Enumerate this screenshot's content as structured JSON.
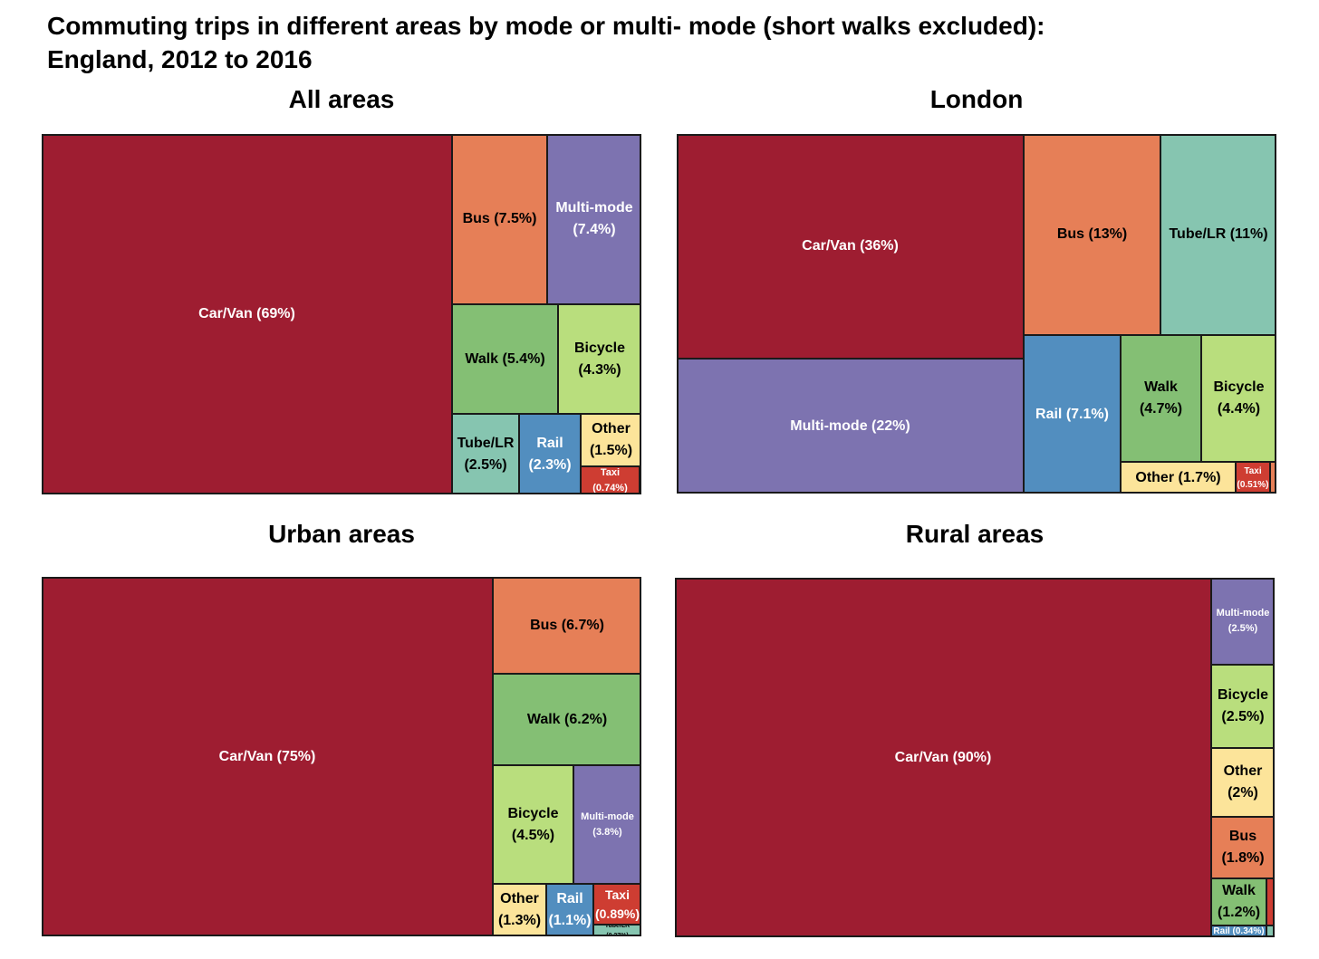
{
  "title_line1": "Commuting trips in different areas by mode or multi- mode (short walks excluded):",
  "title_line2": "England, 2012 to 2016",
  "colors": {
    "car": "#9E1D31",
    "bus": "#E67F57",
    "multi": "#7D73B0",
    "walk": "#84BF74",
    "bicycle": "#B9DE7D",
    "tube": "#86C5B0",
    "rail": "#528EBF",
    "other": "#FCE49A",
    "taxi": "#CE3D32"
  },
  "chart_data": [
    {
      "type": "treemap",
      "title": "All areas",
      "tiles": [
        {
          "mode": "Car/Van",
          "value": 69,
          "label": "Car/Van (69%)",
          "color": "car"
        },
        {
          "mode": "Bus",
          "value": 7.5,
          "label": "Bus (7.5%)",
          "color": "bus"
        },
        {
          "mode": "Multi-mode",
          "value": 7.4,
          "label": "Multi-mode\n(7.4%)",
          "color": "multi"
        },
        {
          "mode": "Walk",
          "value": 5.4,
          "label": "Walk (5.4%)",
          "color": "walk"
        },
        {
          "mode": "Bicycle",
          "value": 4.3,
          "label": "Bicycle\n(4.3%)",
          "color": "bicycle"
        },
        {
          "mode": "Tube/LR",
          "value": 2.5,
          "label": "Tube/LR\n(2.5%)",
          "color": "tube"
        },
        {
          "mode": "Rail",
          "value": 2.3,
          "label": "Rail\n(2.3%)",
          "color": "rail"
        },
        {
          "mode": "Other",
          "value": 1.5,
          "label": "Other\n(1.5%)",
          "color": "other"
        },
        {
          "mode": "Taxi",
          "value": 0.74,
          "label": "Taxi\n(0.74%)",
          "color": "taxi"
        },
        {
          "mode": "unlabeled",
          "value": 0.06,
          "label": "",
          "color": "bus"
        }
      ]
    },
    {
      "type": "treemap",
      "title": "London",
      "tiles": [
        {
          "mode": "Car/Van",
          "value": 36,
          "label": "Car/Van (36%)",
          "color": "car"
        },
        {
          "mode": "Multi-mode",
          "value": 22,
          "label": "Multi-mode (22%)",
          "color": "multi"
        },
        {
          "mode": "Bus",
          "value": 13,
          "label": "Bus (13%)",
          "color": "bus"
        },
        {
          "mode": "Tube/LR",
          "value": 11,
          "label": "Tube/LR (11%)",
          "color": "tube"
        },
        {
          "mode": "Rail",
          "value": 7.1,
          "label": "Rail (7.1%)",
          "color": "rail"
        },
        {
          "mode": "Walk",
          "value": 4.7,
          "label": "Walk\n(4.7%)",
          "color": "walk"
        },
        {
          "mode": "Bicycle",
          "value": 4.4,
          "label": "Bicycle\n(4.4%)",
          "color": "bicycle"
        },
        {
          "mode": "Other",
          "value": 1.7,
          "label": "Other (1.7%)",
          "color": "other"
        },
        {
          "mode": "Taxi",
          "value": 0.51,
          "label": "Taxi\n(0.51%)",
          "color": "taxi"
        },
        {
          "mode": "unlabeled",
          "value": 0.05,
          "label": "",
          "color": "bus"
        }
      ]
    },
    {
      "type": "treemap",
      "title": "Urban areas",
      "tiles": [
        {
          "mode": "Car/Van",
          "value": 75,
          "label": "Car/Van (75%)",
          "color": "car"
        },
        {
          "mode": "Bus",
          "value": 6.7,
          "label": "Bus (6.7%)",
          "color": "bus"
        },
        {
          "mode": "Walk",
          "value": 6.2,
          "label": "Walk (6.2%)",
          "color": "walk"
        },
        {
          "mode": "Bicycle",
          "value": 4.5,
          "label": "Bicycle\n(4.5%)",
          "color": "bicycle"
        },
        {
          "mode": "Multi-mode",
          "value": 3.8,
          "label": "Multi-mode\n(3.8%)",
          "color": "multi"
        },
        {
          "mode": "Other",
          "value": 1.3,
          "label": "Other\n(1.3%)",
          "color": "other"
        },
        {
          "mode": "Rail",
          "value": 1.1,
          "label": "Rail\n(1.1%)",
          "color": "rail"
        },
        {
          "mode": "Taxi",
          "value": 0.89,
          "label": "Taxi\n(0.89%)",
          "color": "taxi"
        },
        {
          "mode": "Tube/LR",
          "value": 0.27,
          "label": "Tube/LR (0.27%)",
          "color": "tube"
        }
      ]
    },
    {
      "type": "treemap",
      "title": "Rural areas",
      "tiles": [
        {
          "mode": "Car/Van",
          "value": 90,
          "label": "Car/Van (90%)",
          "color": "car"
        },
        {
          "mode": "Multi-mode",
          "value": 2.5,
          "label": "Multi-mode\n(2.5%)",
          "color": "multi"
        },
        {
          "mode": "Bicycle",
          "value": 2.5,
          "label": "Bicycle\n(2.5%)",
          "color": "bicycle"
        },
        {
          "mode": "Other",
          "value": 2,
          "label": "Other\n(2%)",
          "color": "other"
        },
        {
          "mode": "Bus",
          "value": 1.8,
          "label": "Bus\n(1.8%)",
          "color": "bus"
        },
        {
          "mode": "Walk",
          "value": 1.2,
          "label": "Walk\n(1.2%)",
          "color": "walk"
        },
        {
          "mode": "Rail",
          "value": 0.34,
          "label": "Rail (0.34%)",
          "color": "rail"
        },
        {
          "mode": "Taxi",
          "value": 0.2,
          "label": "",
          "color": "taxi"
        },
        {
          "mode": "Tube/LR",
          "value": 0.1,
          "label": "",
          "color": "tube"
        }
      ]
    }
  ]
}
